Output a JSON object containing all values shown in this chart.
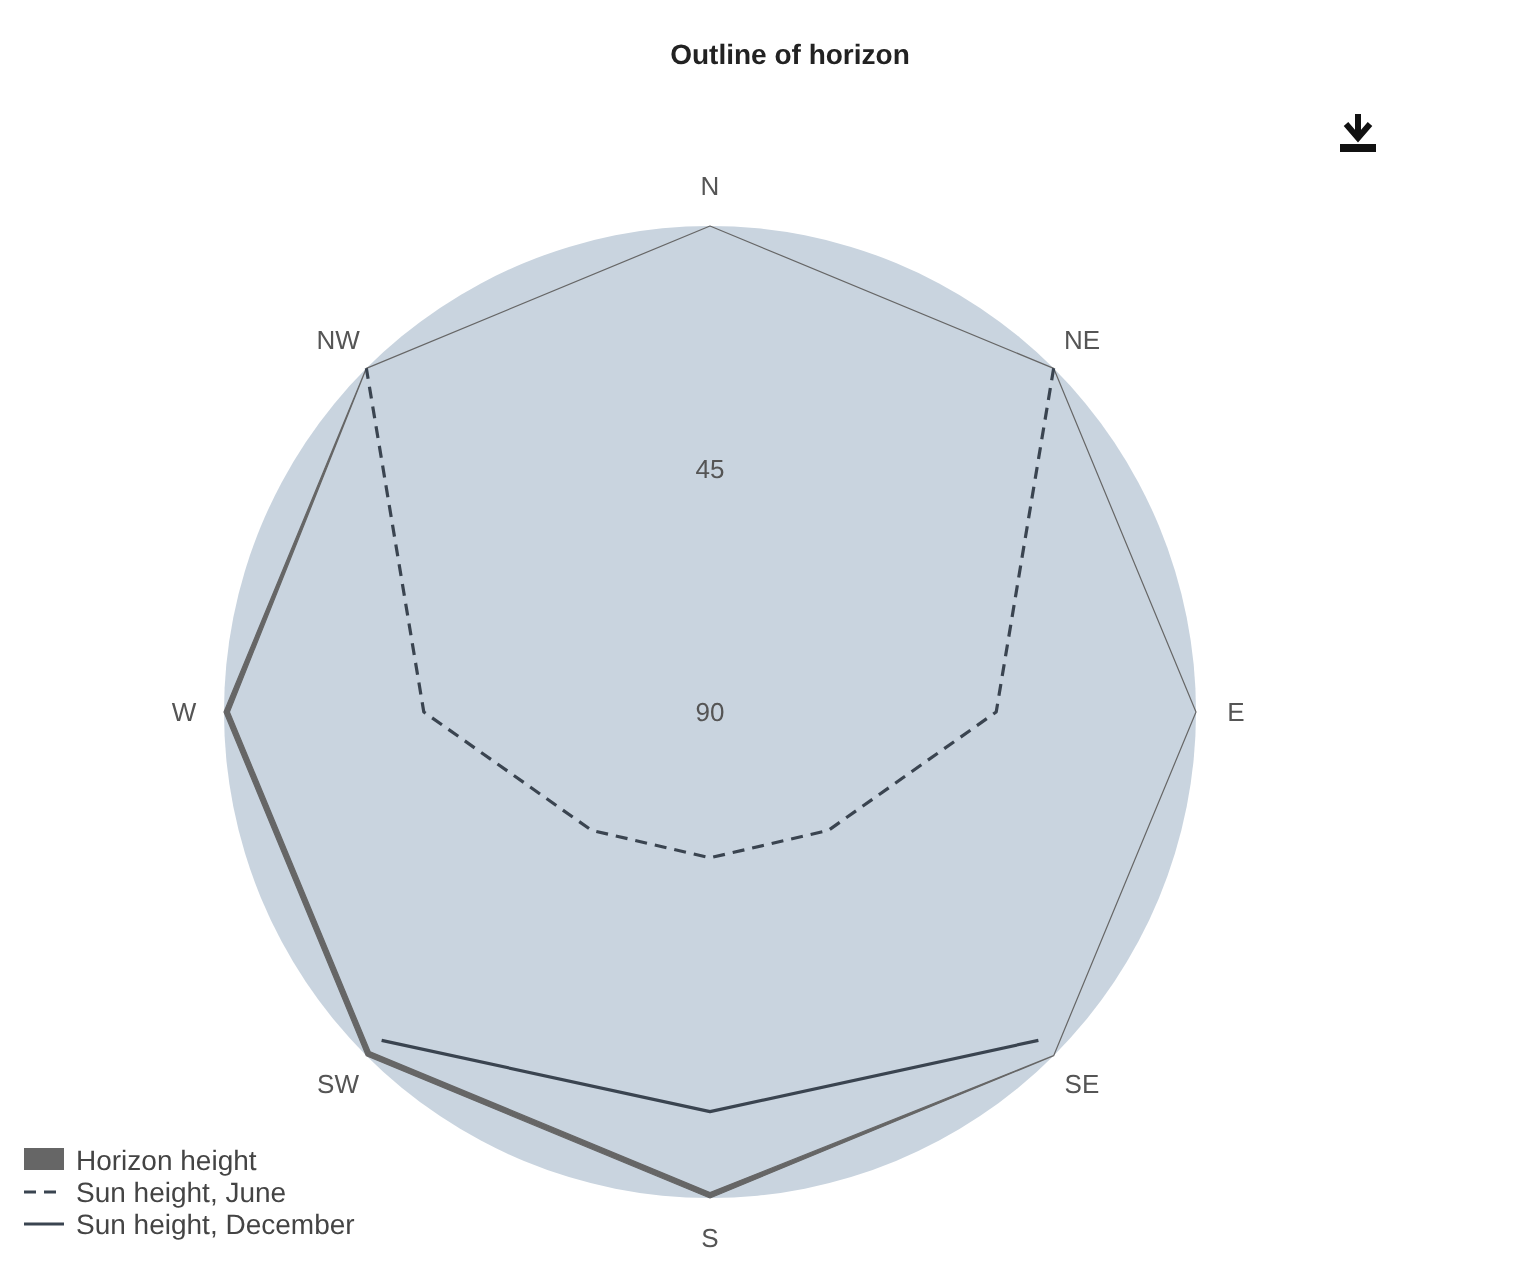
{
  "chart_data": {
    "type": "radar",
    "title": "Outline of horizon",
    "categories": [
      "N",
      "NE",
      "E",
      "SE",
      "S",
      "SW",
      "W",
      "NW"
    ],
    "ylim": [
      90,
      0
    ],
    "yticks": [
      45,
      90
    ],
    "legend": "bottom left",
    "series": [
      {
        "name": "Horizon height",
        "type": "area",
        "color": "#666666",
        "values": [
          0,
          0,
          0,
          0,
          1,
          1,
          1,
          0
        ]
      },
      {
        "name": "Sun height, June",
        "line_style": "dashed",
        "color": "#3a4450",
        "values": [
          null,
          0,
          37,
          59,
          63,
          59,
          37,
          0
        ]
      },
      {
        "name": "Sun height, December",
        "line_style": "solid",
        "color": "#3a4450",
        "values": [
          null,
          null,
          null,
          4,
          16,
          4,
          null,
          null
        ]
      }
    ]
  }
}
